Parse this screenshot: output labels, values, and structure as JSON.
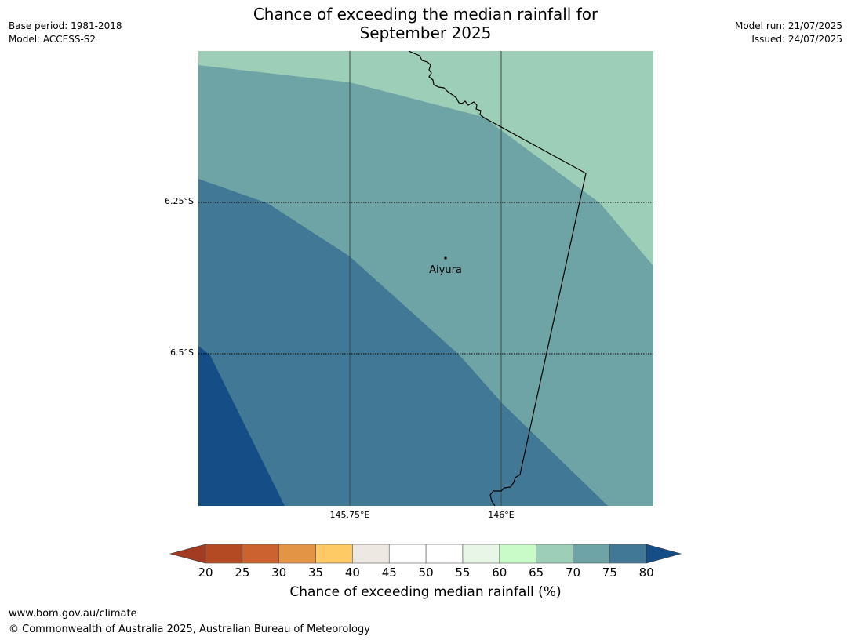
{
  "title_line1": "Chance of exceeding the median rainfall for",
  "title_line2": "September 2025",
  "meta_left": {
    "base_period": "Base period: 1981-2018",
    "model": "Model: ACCESS-S2"
  },
  "meta_right": {
    "model_run": "Model run: 21/07/2025",
    "issued": "Issued: 24/07/2025"
  },
  "map": {
    "place_label": "Aiyura",
    "lat_ticks": [
      "6.25°S",
      "6.5°S"
    ],
    "lon_ticks": [
      "145.75°E",
      "146°E"
    ]
  },
  "legend": {
    "title": "Chance of exceeding median rainfall (%)",
    "ticks": [
      "20",
      "25",
      "30",
      "35",
      "40",
      "45",
      "50",
      "55",
      "60",
      "65",
      "70",
      "75",
      "80"
    ],
    "colors": [
      "#a23b22",
      "#b34a24",
      "#cc6230",
      "#e39445",
      "#fdca65",
      "#ede8e2",
      "#ffffff",
      "#ffffff",
      "#e8f6e8",
      "#c9fbc9",
      "#9dcfb8",
      "#6fa4a7",
      "#417896",
      "#154e87"
    ]
  },
  "footer": {
    "url": "www.bom.gov.au/climate",
    "copyright": "© Commonwealth of Australia 2025, Australian Bureau of Meteorology"
  }
}
